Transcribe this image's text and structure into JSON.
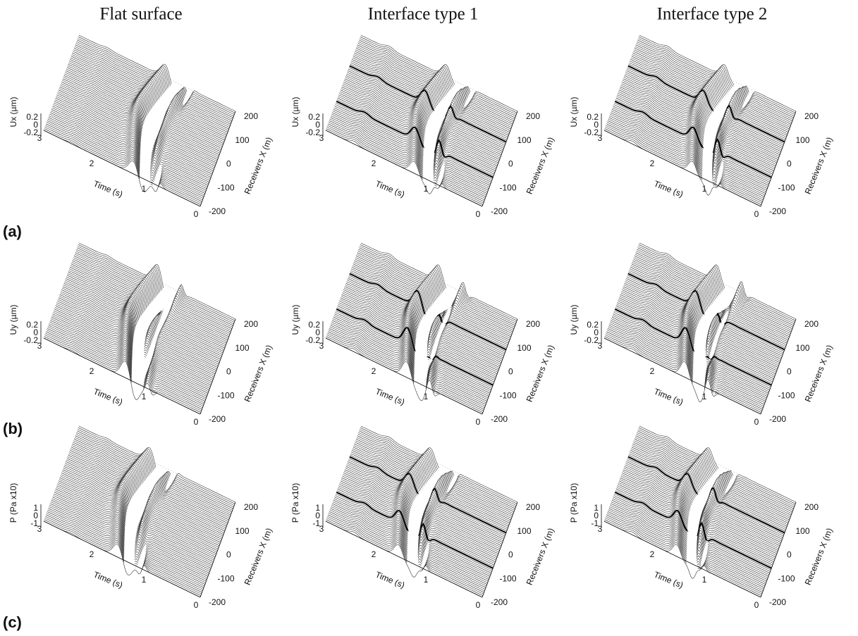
{
  "columns": [
    "Flat surface",
    "Interface type 1",
    "Interface type 2"
  ],
  "rows": [
    {
      "label": "(a)",
      "z_label": "Ux (µm)",
      "z_ticks": [
        "0.2",
        "0",
        "-0.2"
      ]
    },
    {
      "label": "(b)",
      "z_label": "Uy (µm)",
      "z_ticks": [
        "0.2",
        "0",
        "-0.2"
      ]
    },
    {
      "label": "(c)",
      "z_label": "P (Pa x10)",
      "z_ticks": [
        "1",
        "0",
        "-1"
      ]
    }
  ],
  "time_label": "Time (s)",
  "time_ticks": [
    "3",
    "2",
    "1",
    "0"
  ],
  "receiver_label": "Receivers X (m)",
  "receiver_ticks": [
    "200",
    "100",
    "0",
    "-100",
    "-200"
  ]
}
